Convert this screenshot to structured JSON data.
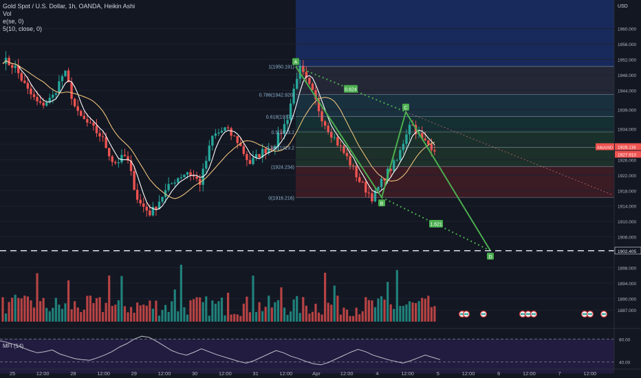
{
  "header": {
    "title": "Gold Spot / U.S. Dollar, 1h, OANDA, Heikin Ashi",
    "line2": "Vol",
    "line3": "e(se, 0)",
    "line4": "5(10, close, 0)"
  },
  "currency_label": "USD",
  "colors": {
    "bg": "#131722",
    "up": "#26a69a",
    "down": "#ef5350",
    "pattern": "#4caf50",
    "fast_ma": "#ffffff",
    "slow_ma": "#f0c27b",
    "fib_top_zone": "#1e3a8a",
    "fib_bottom_zone": "#5c1a22",
    "mfi_line": "#c0c3cc",
    "mfi_band": "#2a1f4d"
  },
  "chart_data": [
    {
      "type": "candlestick",
      "title": "Gold Spot / U.S. Dollar, 1h, OANDA, Heikin Ashi",
      "ylim": [
        1884,
        1966
      ],
      "y_ticks": [
        1960,
        1956,
        1952,
        1948,
        1944,
        1939,
        1934,
        1930,
        1926,
        1922,
        1918,
        1914,
        1910,
        1906,
        1902,
        1898,
        1894,
        1890,
        1887
      ],
      "y_tick_labels": [
        "1960.000",
        "1956.000",
        "1952.000",
        "1948.000",
        "1944.000",
        "1939.000",
        "1934.000",
        "1930.000",
        "1926.000",
        "1922.000",
        "1918.000",
        "1914.000",
        "1910.000",
        "1906.000",
        "1902.000",
        "1898.000",
        "1894.000",
        "1890.000",
        "1887.000"
      ],
      "x_tick_labels": [
        "25",
        "12:00",
        "28",
        "12:00",
        "29",
        "12:00",
        "30",
        "12:00",
        "31",
        "12:00",
        "Apr",
        "12:00",
        "4",
        "12:00",
        "5",
        "12:00",
        "6",
        "12:00",
        "7",
        "12:00"
      ],
      "price_anchors": [
        1952,
        1950,
        1944,
        1940,
        1942,
        1949,
        1938,
        1935,
        1932,
        1925,
        1927,
        1915,
        1912,
        1917,
        1921,
        1923,
        1920,
        1932,
        1934,
        1931,
        1925,
        1928,
        1930,
        1936,
        1950,
        1944,
        1936,
        1931,
        1926,
        1920,
        1916,
        1922,
        1926,
        1936,
        1931,
        1929
      ],
      "price_labels": {
        "xauusd": "XAUUSD",
        "last": "1928.116",
        "prev": "1927.910",
        "level": "1902.405"
      },
      "horizontal_line": 1902.405,
      "fib_levels": [
        {
          "ratio": "1",
          "price": 1950.191,
          "label": "1(1950.191)"
        },
        {
          "ratio": "0.786",
          "price": 1942.92,
          "label": "0.786(1942.920)"
        },
        {
          "ratio": "0.618",
          "price": 1937.2,
          "label": "0.618(1937.2"
        },
        {
          "ratio": "0.5",
          "price": 1933.2,
          "label": "0.5(1933.2"
        },
        {
          "ratio": "0.382",
          "price": 1929.2,
          "label": "0.382(1929.2"
        },
        {
          "ratio": "",
          "price": 1924.234,
          "label": "(1924.234)"
        },
        {
          "ratio": "0",
          "price": 1916.216,
          "label": "0(1916.216)"
        }
      ],
      "pattern": {
        "points": [
          {
            "name": "A",
            "price": 1950.191
          },
          {
            "name": "B",
            "price": 1916.216
          },
          {
            "name": "C",
            "price": 1938.4
          },
          {
            "name": "D",
            "price": 1902.405
          }
        ],
        "ratios": [
          "0.624",
          "1.621"
        ]
      }
    },
    {
      "type": "bar",
      "title": "Vol",
      "note": "volume histogram"
    },
    {
      "type": "line",
      "title": "MFI (14)",
      "ylim": [
        30,
        90
      ],
      "y_ticks": [
        80,
        40
      ],
      "y_tick_labels": [
        "80.00",
        "40.00"
      ],
      "band": [
        20,
        80
      ],
      "values": [
        77,
        74,
        70,
        65,
        60,
        56,
        58,
        61,
        54,
        50,
        46,
        44,
        43,
        47,
        52,
        58,
        66,
        72,
        80,
        85,
        83,
        76,
        68,
        60,
        55,
        52,
        57,
        63,
        58,
        53,
        49,
        45,
        41,
        38,
        42,
        48,
        54,
        60,
        56,
        50,
        46,
        41,
        37,
        35,
        39,
        45,
        51,
        57,
        62,
        58,
        52,
        48,
        44,
        41,
        38,
        42,
        47,
        52,
        48,
        44
      ]
    }
  ]
}
